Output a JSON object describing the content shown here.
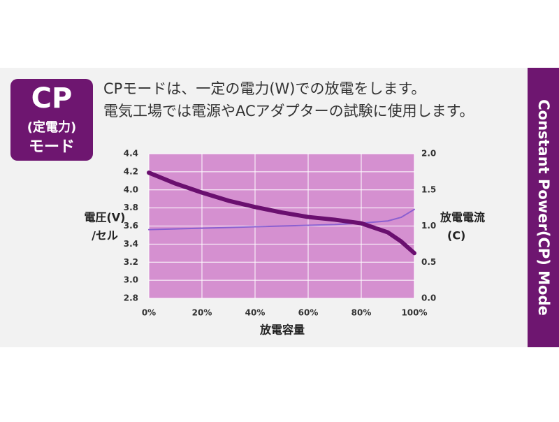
{
  "badge": {
    "title": "CP",
    "subtitle": "(定電力)",
    "mode": "モード"
  },
  "description": [
    "CPモードは、一定の電力(W)での放電をします。",
    "電気工場では電源やACアダプターの試験に使用します。"
  ],
  "side_label": "Constant Power(CP) Mode",
  "chart_data": {
    "type": "line",
    "xlabel": "放電容量",
    "ylabel": [
      "電圧(V)",
      "/セル"
    ],
    "y2label": [
      "放電電流",
      "(C)"
    ],
    "x": [
      0,
      10,
      20,
      30,
      40,
      50,
      60,
      70,
      80,
      90,
      95,
      100
    ],
    "series": [
      {
        "name": "電圧",
        "color": "#6a0f6f",
        "values": [
          4.19,
          4.07,
          3.97,
          3.88,
          3.81,
          3.75,
          3.7,
          3.67,
          3.63,
          3.53,
          3.43,
          3.3
        ]
      },
      {
        "name": "放電電流",
        "color": "#8b5fd0",
        "axis": "y2",
        "values": [
          0.95,
          0.96,
          0.97,
          0.98,
          0.99,
          1.0,
          1.01,
          1.02,
          1.04,
          1.07,
          1.12,
          1.23
        ]
      }
    ],
    "xlim": [
      0,
      100
    ],
    "xticks": [
      {
        "value": 0,
        "label": "0%"
      },
      {
        "value": 20,
        "label": "20%"
      },
      {
        "value": 40,
        "label": "40%"
      },
      {
        "value": 60,
        "label": "60%"
      },
      {
        "value": 80,
        "label": "80%"
      },
      {
        "value": 100,
        "label": "100%"
      }
    ],
    "ylim": [
      2.8,
      4.4
    ],
    "yticks": [
      2.8,
      {
        "value": 3,
        "label": "3.0"
      },
      3.2,
      3.4,
      3.6,
      3.8,
      {
        "value": 4,
        "label": "4.0"
      },
      4.2,
      4.4
    ],
    "y2lim": [
      0,
      2
    ],
    "y2ticks": [
      {
        "value": 0,
        "label": "0.0"
      },
      0.5,
      {
        "value": 1,
        "label": "1.0"
      },
      1.5,
      {
        "value": 2,
        "label": "2.0"
      }
    ],
    "grid": true,
    "plot_background": "#d590d0"
  }
}
